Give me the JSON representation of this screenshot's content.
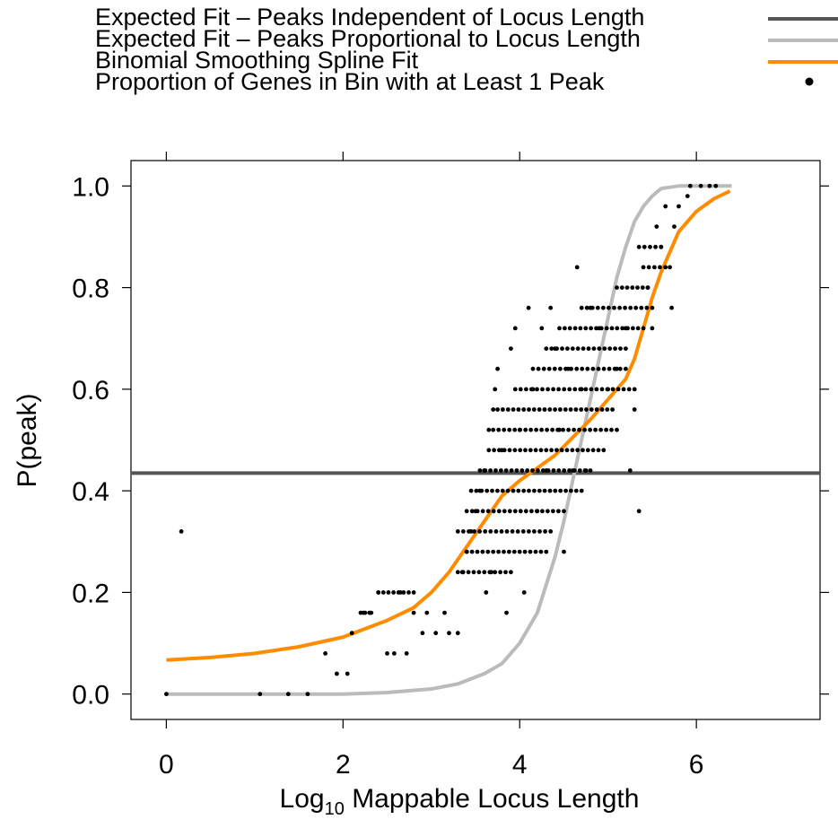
{
  "chart_data": {
    "type": "scatter",
    "title": "",
    "xlabel": "Log",
    "xlabel_sub": "10",
    "xlabel_rest": " Mappable Locus Length",
    "ylabel": "P(peak)",
    "xlim": [
      -0.4,
      7.4
    ],
    "ylim": [
      -0.05,
      1.05
    ],
    "x_ticks": [
      0,
      2,
      4,
      6
    ],
    "x_tick_labels": [
      "0",
      "2",
      "4",
      "6"
    ],
    "y_ticks": [
      0.0,
      0.2,
      0.4,
      0.6,
      0.8,
      1.0
    ],
    "y_tick_labels": [
      "0.0",
      "0.2",
      "0.4",
      "0.6",
      "0.8",
      "1.0"
    ],
    "grid": false,
    "legend_position": "top",
    "legend": [
      {
        "label": "Expected Fit – Peaks Independent of Locus Length",
        "symbol": "line",
        "color": "#555555"
      },
      {
        "label": "Expected Fit – Peaks Proportional to Locus Length",
        "symbol": "line",
        "color": "#bbbbbb"
      },
      {
        "label": "Binomial Smoothing Spline Fit",
        "symbol": "line",
        "color": "#ff8c00"
      },
      {
        "label": "Proportion of Genes in Bin with at Least 1 Peak",
        "symbol": "point",
        "color": "#000000"
      }
    ],
    "series": [
      {
        "kind": "hline",
        "y": 0.435,
        "color": "#555555"
      },
      {
        "kind": "line",
        "color": "#bbbbbb",
        "x": [
          0.0,
          1.0,
          2.0,
          2.5,
          3.0,
          3.3,
          3.6,
          3.8,
          4.0,
          4.2,
          4.4,
          4.5,
          4.6,
          4.7,
          4.8,
          4.9,
          5.0,
          5.1,
          5.2,
          5.3,
          5.4,
          5.5,
          5.6,
          5.8,
          6.0,
          6.4
        ],
        "y": [
          0.0,
          0.0,
          0.0,
          0.003,
          0.01,
          0.02,
          0.04,
          0.06,
          0.1,
          0.16,
          0.27,
          0.34,
          0.42,
          0.5,
          0.58,
          0.66,
          0.74,
          0.82,
          0.88,
          0.93,
          0.96,
          0.98,
          0.995,
          1.0,
          1.0,
          1.0
        ]
      },
      {
        "kind": "line",
        "color": "#ff8c00",
        "x": [
          0.0,
          0.5,
          1.0,
          1.5,
          2.0,
          2.5,
          2.8,
          3.0,
          3.2,
          3.4,
          3.6,
          3.8,
          4.0,
          4.2,
          4.4,
          4.6,
          4.8,
          5.0,
          5.2,
          5.3,
          5.4,
          5.5,
          5.6,
          5.7,
          5.8,
          6.0,
          6.2,
          6.38
        ],
        "y": [
          0.067,
          0.072,
          0.08,
          0.093,
          0.112,
          0.145,
          0.17,
          0.2,
          0.24,
          0.29,
          0.34,
          0.39,
          0.42,
          0.445,
          0.47,
          0.505,
          0.54,
          0.58,
          0.62,
          0.66,
          0.72,
          0.78,
          0.83,
          0.87,
          0.91,
          0.95,
          0.975,
          0.99
        ]
      },
      {
        "kind": "points",
        "color": "#000000",
        "points": [
          [
            0.0,
            0.0
          ],
          [
            0.17,
            0.32
          ],
          [
            1.06,
            0.0
          ],
          [
            1.38,
            0.0
          ],
          [
            1.6,
            0.0
          ],
          [
            1.8,
            0.08
          ],
          [
            1.93,
            0.04
          ],
          [
            2.05,
            0.04
          ],
          [
            2.1,
            0.12
          ],
          [
            2.23,
            0.16
          ],
          [
            2.32,
            0.16
          ],
          [
            2.4,
            0.2
          ],
          [
            2.5,
            0.08
          ],
          [
            2.58,
            0.08
          ],
          [
            2.65,
            0.2
          ],
          [
            2.72,
            0.08
          ],
          [
            2.8,
            0.16
          ],
          [
            2.9,
            0.12
          ],
          [
            2.95,
            0.16
          ],
          [
            3.05,
            0.12
          ],
          [
            3.15,
            0.16
          ],
          [
            3.2,
            0.12
          ],
          [
            3.3,
            0.12
          ],
          [
            3.35,
            0.24
          ],
          [
            3.4,
            0.28
          ],
          [
            3.45,
            0.32
          ],
          [
            3.5,
            0.36
          ],
          [
            3.55,
            0.4
          ],
          [
            3.6,
            0.44
          ],
          [
            3.62,
            0.2
          ],
          [
            3.65,
            0.52
          ],
          [
            3.68,
            0.24
          ],
          [
            3.7,
            0.56
          ],
          [
            3.72,
            0.6
          ],
          [
            3.75,
            0.64
          ],
          [
            3.8,
            0.48
          ],
          [
            3.85,
            0.16
          ],
          [
            3.9,
            0.68
          ],
          [
            3.95,
            0.72
          ],
          [
            4.0,
            0.52
          ],
          [
            4.05,
            0.2
          ],
          [
            4.1,
            0.76
          ],
          [
            4.15,
            0.6
          ],
          [
            4.2,
            0.36
          ],
          [
            4.25,
            0.72
          ],
          [
            4.3,
            0.44
          ],
          [
            4.35,
            0.76
          ],
          [
            4.4,
            0.68
          ],
          [
            4.45,
            0.52
          ],
          [
            4.5,
            0.28
          ],
          [
            4.55,
            0.64
          ],
          [
            4.6,
            0.44
          ],
          [
            4.65,
            0.84
          ],
          [
            4.7,
            0.6
          ],
          [
            4.75,
            0.44
          ],
          [
            4.8,
            0.76
          ],
          [
            4.9,
            0.72
          ],
          [
            5.0,
            0.6
          ],
          [
            5.1,
            0.64
          ],
          [
            5.2,
            0.72
          ],
          [
            5.25,
            0.44
          ],
          [
            5.3,
            0.56
          ],
          [
            5.35,
            0.36
          ],
          [
            5.45,
            0.8
          ],
          [
            5.5,
            0.72
          ],
          [
            5.55,
            0.92
          ],
          [
            5.6,
            0.88
          ],
          [
            5.65,
            0.96
          ],
          [
            5.7,
            0.84
          ],
          [
            5.72,
            0.76
          ],
          [
            5.75,
            0.92
          ],
          [
            5.8,
            0.96
          ],
          [
            5.9,
            0.98
          ],
          [
            5.93,
            1.0
          ],
          [
            6.05,
            1.0
          ],
          [
            6.15,
            1.0
          ],
          [
            6.22,
            1.0
          ]
        ]
      }
    ],
    "point_rows": [
      [
        0.16,
        2.2,
        2.3
      ],
      [
        0.2,
        2.4,
        2.8
      ],
      [
        0.24,
        3.3,
        3.9
      ],
      [
        0.28,
        3.4,
        4.3
      ],
      [
        0.32,
        3.3,
        4.35
      ],
      [
        0.36,
        3.4,
        4.5
      ],
      [
        0.4,
        3.45,
        4.7
      ],
      [
        0.44,
        3.55,
        4.8
      ],
      [
        0.48,
        3.65,
        4.95
      ],
      [
        0.52,
        3.7,
        5.1
      ],
      [
        0.56,
        3.75,
        5.05
      ],
      [
        0.6,
        3.95,
        5.3
      ],
      [
        0.64,
        4.15,
        5.2
      ],
      [
        0.68,
        4.3,
        5.2
      ],
      [
        0.72,
        4.45,
        5.4
      ],
      [
        0.76,
        4.7,
        5.5
      ],
      [
        0.8,
        5.1,
        5.45
      ],
      [
        0.84,
        5.4,
        5.65
      ],
      [
        0.88,
        5.35,
        5.6
      ]
    ]
  }
}
